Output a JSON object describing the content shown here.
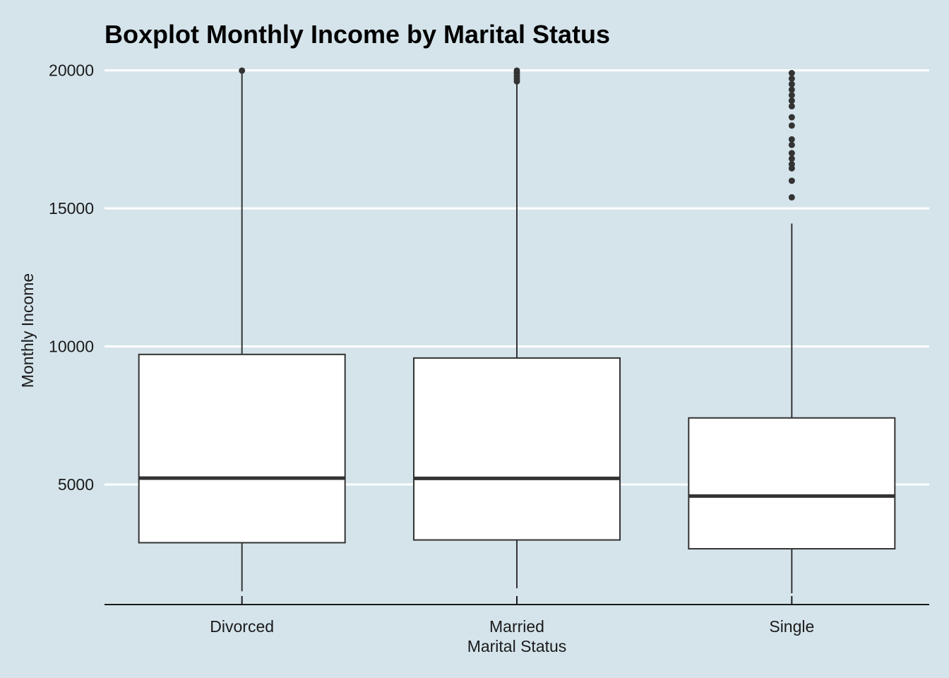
{
  "chart_data": {
    "type": "boxplot",
    "title": "Boxplot Monthly Income by Marital Status",
    "xlabel": "Marital Status",
    "ylabel": "Monthly Income",
    "ylim": [
      650,
      20450
    ],
    "yticks": [
      5000,
      10000,
      15000,
      20000
    ],
    "ytick_labels": [
      "5000",
      "10000",
      "15000",
      "20000"
    ],
    "grid": "horizontal major lines",
    "legend": "none",
    "categories": [
      "Divorced",
      "Married",
      "Single"
    ],
    "boxes": [
      {
        "category": "Divorced",
        "whisker_low": 1130,
        "q1": 2890,
        "median": 5230,
        "q3": 9710,
        "whisker_high": 19970,
        "outliers": [
          19990
        ]
      },
      {
        "category": "Married",
        "whisker_low": 1240,
        "q1": 2990,
        "median": 5220,
        "q3": 9580,
        "whisker_high": 19550,
        "outliers": [
          19600,
          19700,
          19800,
          19900,
          19990
        ]
      },
      {
        "category": "Single",
        "whisker_low": 1060,
        "q1": 2670,
        "median": 4580,
        "q3": 7410,
        "whisker_high": 14450,
        "outliers": [
          15400,
          16000,
          16450,
          16600,
          16800,
          17000,
          17300,
          17500,
          18000,
          18300,
          18700,
          18900,
          19100,
          19300,
          19500,
          19700,
          19900
        ]
      }
    ],
    "colors": {
      "background": "#d5e4eb",
      "box_fill": "#ffffff",
      "stroke": "#333333",
      "grid": "#ffffff",
      "axis": "#1a1a1a"
    }
  }
}
